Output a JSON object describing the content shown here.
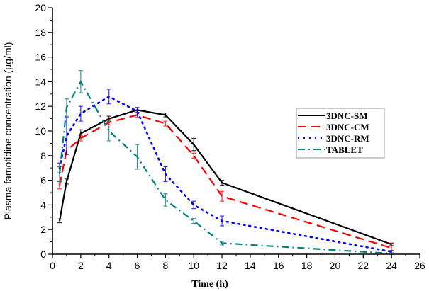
{
  "chart_data": {
    "type": "line",
    "title": "",
    "xlabel": "Time (h)",
    "ylabel": "Plasma famotidine concentration (µg/ml)",
    "xlim": [
      0,
      26
    ],
    "ylim": [
      0,
      20
    ],
    "xticks": [
      0,
      2,
      4,
      6,
      8,
      10,
      12,
      14,
      16,
      18,
      20,
      22,
      24,
      26
    ],
    "yticks": [
      0,
      2,
      4,
      6,
      8,
      10,
      12,
      14,
      16,
      18,
      20
    ],
    "grid": false,
    "legend_position": "right",
    "series": [
      {
        "name": "3DNC-SM",
        "color": "#000000",
        "style": "solid",
        "x": [
          0.5,
          1,
          2,
          4,
          6,
          8,
          10,
          12,
          24
        ],
        "y": [
          2.7,
          5.9,
          9.8,
          11.0,
          11.7,
          11.3,
          8.9,
          5.8,
          0.8
        ],
        "err": [
          0.15,
          0.2,
          0.3,
          0.2,
          0.2,
          0.15,
          0.5,
          0.2,
          0.1
        ]
      },
      {
        "name": "3DNC-CM",
        "color": "#ff0000",
        "style": "dashed",
        "x": [
          0.5,
          1,
          2,
          4,
          6,
          8,
          10,
          12,
          24
        ],
        "y": [
          5.6,
          8.4,
          9.4,
          10.7,
          11.3,
          10.6,
          8.0,
          4.7,
          0.5
        ],
        "err": [
          0.3,
          0.3,
          0.2,
          0.2,
          0.2,
          0.2,
          0.2,
          0.4,
          0.4
        ]
      },
      {
        "name": "3DNC-RM",
        "color": "#0000ff",
        "style": "dotted",
        "x": [
          0.5,
          1,
          2,
          4,
          6,
          8,
          10,
          12,
          24
        ],
        "y": [
          7.0,
          9.6,
          11.4,
          12.8,
          11.6,
          6.5,
          4.0,
          2.7,
          0.2
        ],
        "err": [
          0.4,
          1.5,
          0.6,
          0.6,
          0.3,
          0.6,
          0.3,
          0.4,
          0.1
        ]
      },
      {
        "name": "TABLET",
        "color": "#008080",
        "style": "dashdot",
        "x": [
          0.5,
          1,
          2,
          4,
          6,
          8,
          10,
          12,
          24
        ],
        "y": [
          6.5,
          11.9,
          14.0,
          10.0,
          7.9,
          4.4,
          2.7,
          0.9,
          0.05
        ],
        "err": [
          0.6,
          0.7,
          0.9,
          0.8,
          1.0,
          0.5,
          0.2,
          0.15,
          0.05
        ]
      }
    ]
  }
}
